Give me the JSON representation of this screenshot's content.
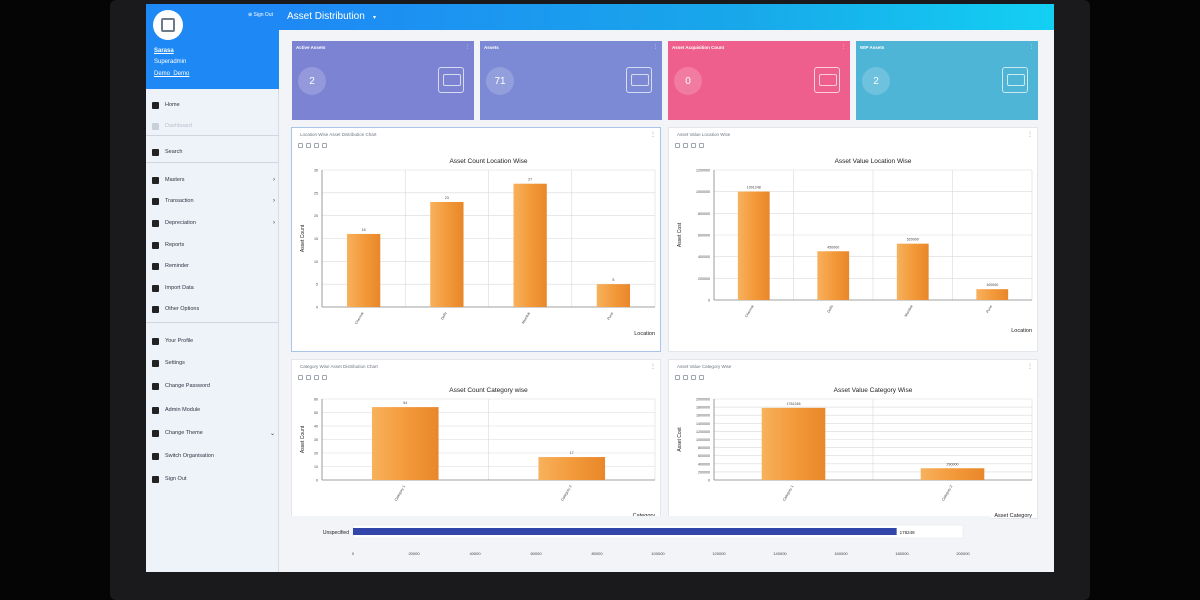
{
  "header": {
    "title": "Asset Distribution",
    "caret": "▾"
  },
  "sidebar": {
    "signout_top": "⊕ Sign Out",
    "user": {
      "name": "Sarasa",
      "role": "Superadmin",
      "org": "Demo_Demo"
    },
    "items": [
      {
        "label": "Home",
        "icon": "home-icon",
        "chevron": ""
      },
      {
        "label": "Dashboard",
        "icon": "dashboard-icon",
        "chevron": ""
      },
      {
        "label": "Search",
        "icon": "search-icon",
        "chevron": ""
      },
      {
        "label": "Masters",
        "icon": "database-icon",
        "chevron": "›"
      },
      {
        "label": "Transaction",
        "icon": "transaction-icon",
        "chevron": "›"
      },
      {
        "label": "Depreciation",
        "icon": "rupee-icon",
        "chevron": "›"
      },
      {
        "label": "Reports",
        "icon": "report-icon",
        "chevron": ""
      },
      {
        "label": "Reminder",
        "icon": "reminder-icon",
        "chevron": ""
      },
      {
        "label": "Import Data",
        "icon": "import-icon",
        "chevron": ""
      },
      {
        "label": "Other Options",
        "icon": "options-icon",
        "chevron": ""
      },
      {
        "label": "Your Profile",
        "icon": "user-icon",
        "chevron": ""
      },
      {
        "label": "Settings",
        "icon": "gear-icon",
        "chevron": ""
      },
      {
        "label": "Change Password",
        "icon": "key-icon",
        "chevron": ""
      },
      {
        "label": "Admin Module",
        "icon": "admin-icon",
        "chevron": ""
      },
      {
        "label": "Change Theme",
        "icon": "brush-icon",
        "chevron": "⌄"
      },
      {
        "label": "Switch Organisation",
        "icon": "building-icon",
        "chevron": ""
      },
      {
        "label": "Sign Out",
        "icon": "power-icon",
        "chevron": ""
      }
    ]
  },
  "cards": [
    {
      "title": "Active Assets",
      "value": "2",
      "color": "#7c83d3",
      "icon": "inventory-icon"
    },
    {
      "title": "Assets",
      "value": "71",
      "color": "#7c8ad6",
      "icon": "inventory-icon"
    },
    {
      "title": "Asset Acquisition Count",
      "value": "0",
      "color": "#ee5f8d",
      "icon": "cart-icon"
    },
    {
      "title": "WIP Assets",
      "value": "2",
      "color": "#4fb5d6",
      "icon": "truck-icon"
    }
  ],
  "panels": {
    "loc_count": {
      "title": "Location Wise Asset Distribution Chart"
    },
    "loc_value": {
      "title": "Asset Value Location Wise"
    },
    "cat_count": {
      "title": "Category Wise Asset Distribution Chart"
    },
    "cat_value": {
      "title": "Asset Value Category Wise"
    }
  },
  "chart_data": [
    {
      "type": "bar",
      "title": "Asset Count Location Wise",
      "xlabel": "Location",
      "ylabel": "Asset Count",
      "categories": [
        "Chennai",
        "Delhi",
        "Mumbai",
        "Pune"
      ],
      "values": [
        16,
        23,
        27,
        5
      ],
      "ylim": [
        0,
        30
      ],
      "yticks": [
        0,
        5,
        10,
        15,
        20,
        25,
        30
      ],
      "color": "#f39a3b",
      "grid": true
    },
    {
      "type": "bar",
      "title": "Asset Value Location Wise",
      "xlabel": "Location",
      "ylabel": "Asset Cost",
      "categories": [
        "Chennai",
        "Delhi",
        "Mumbai",
        "Pune"
      ],
      "values": [
        1001248,
        450000,
        520000,
        100000
      ],
      "ylim": [
        0,
        1200000
      ],
      "yticks": [
        0,
        200000,
        400000,
        600000,
        800000,
        1000000,
        1200000
      ],
      "color": "#f39a3b",
      "grid": true
    },
    {
      "type": "bar",
      "title": "Asset Count Category wise",
      "xlabel": "Category",
      "ylabel": "Asset Count",
      "categories": [
        "Category 1",
        "Category 2"
      ],
      "values": [
        54,
        17
      ],
      "ylim": [
        0,
        60
      ],
      "yticks": [
        0,
        10,
        20,
        30,
        40,
        50,
        60
      ],
      "color": "#f39a3b",
      "grid": true
    },
    {
      "type": "bar",
      "title": "Asset Value Category Wise",
      "xlabel": "Asset Category",
      "ylabel": "Asset Cost",
      "categories": [
        "Category 1",
        "Category 2"
      ],
      "values": [
        1781248,
        290000
      ],
      "ylim": [
        0,
        2000000
      ],
      "yticks": [
        0,
        200000,
        400000,
        600000,
        800000,
        1000000,
        1200000,
        1400000,
        1600000,
        1800000,
        2000000
      ],
      "color": "#f39a3b",
      "grid": true
    },
    {
      "type": "bar",
      "orientation": "horizontal",
      "title": "",
      "categories": [
        "Unspecified"
      ],
      "values": [
        178248
      ],
      "data_labels": [
        "178248"
      ],
      "xticks": [
        0,
        20000,
        40000,
        60000,
        80000,
        100000,
        120000,
        140000,
        160000,
        180000,
        200000
      ],
      "xlim": [
        0,
        200000
      ],
      "color": "#3146a8"
    }
  ]
}
